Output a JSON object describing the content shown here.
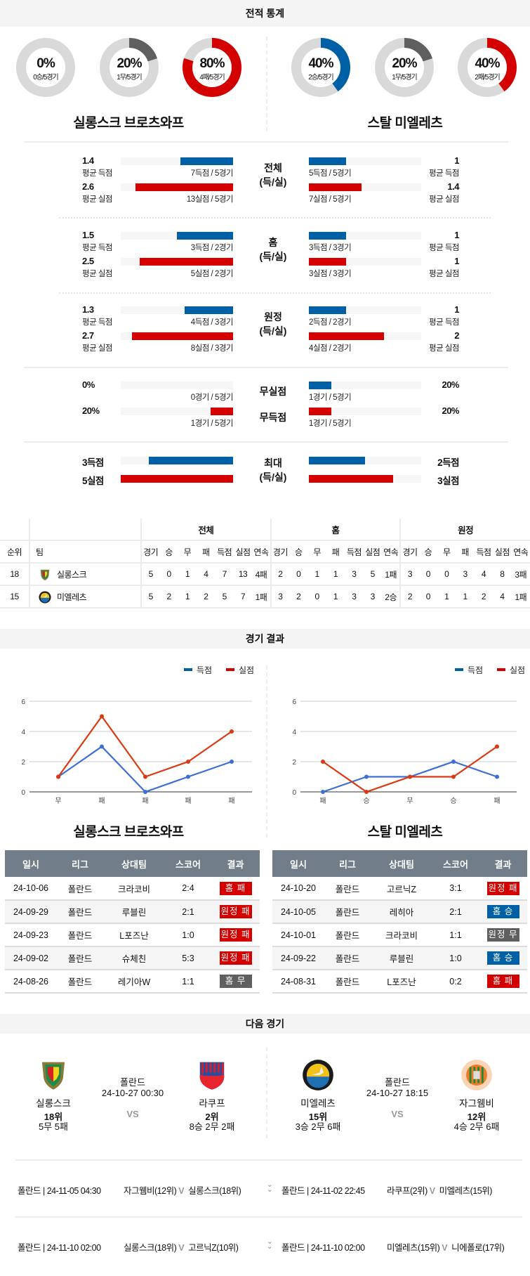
{
  "sections": {
    "record_stats": "전적 통계",
    "match_results": "경기 결과",
    "next_match": "다음 경기"
  },
  "colors": {
    "blue": "#0060a6",
    "red": "#d40000",
    "gray": "#5f5f5f",
    "ring": "#d9d9d9",
    "line_blue": "#3c6fd6",
    "line_red": "#dc3912",
    "badge_blue": "#0060a6",
    "badge_red": "#d40000",
    "badge_gray": "#5f5f5f"
  },
  "teams": {
    "home_full": "실롱스크 브로츠와프",
    "away_full": "스탈 미엘레츠"
  },
  "donuts": [
    {
      "pct": "0%",
      "sub": "0승/5경기",
      "value": 0,
      "color": "blue"
    },
    {
      "pct": "20%",
      "sub": "1무/5경기",
      "value": 20,
      "color": "gray"
    },
    {
      "pct": "80%",
      "sub": "4패/5경기",
      "value": 80,
      "color": "red"
    },
    {
      "pct": "40%",
      "sub": "2승/5경기",
      "value": 40,
      "color": "blue"
    },
    {
      "pct": "20%",
      "sub": "1무/5경기",
      "value": 20,
      "color": "gray"
    },
    {
      "pct": "40%",
      "sub": "2패/5경기",
      "value": 40,
      "color": "red"
    }
  ],
  "stats": [
    {
      "center": "전체",
      "center2": "(득/실)",
      "rows": [
        {
          "color": "blue",
          "left": {
            "value": "1.4",
            "caption": "평균 득점",
            "sub": "7득점 / 5경기",
            "fill": 0.47
          },
          "right": {
            "value": "1",
            "caption": "평균 득점",
            "sub": "5득점 / 5경기",
            "fill": 0.33
          }
        },
        {
          "color": "red",
          "left": {
            "value": "2.6",
            "caption": "평균 실점",
            "sub": "13실점 / 5경기",
            "fill": 0.87
          },
          "right": {
            "value": "1.4",
            "caption": "평균 실점",
            "sub": "7실점 / 5경기",
            "fill": 0.47
          }
        }
      ]
    },
    {
      "center": "홈",
      "center2": "(득/실)",
      "rows": [
        {
          "color": "blue",
          "left": {
            "value": "1.5",
            "caption": "평균 득점",
            "sub": "3득점 / 2경기",
            "fill": 0.5
          },
          "right": {
            "value": "1",
            "caption": "평균 득점",
            "sub": "3득점 / 3경기",
            "fill": 0.33
          }
        },
        {
          "color": "red",
          "left": {
            "value": "2.5",
            "caption": "평균 실점",
            "sub": "5실점 / 2경기",
            "fill": 0.83
          },
          "right": {
            "value": "1",
            "caption": "평균 실점",
            "sub": "3실점 / 3경기",
            "fill": 0.33
          }
        }
      ]
    },
    {
      "center": "원정",
      "center2": "(득/실)",
      "rows": [
        {
          "color": "blue",
          "left": {
            "value": "1.3",
            "caption": "평균 득점",
            "sub": "4득점 / 3경기",
            "fill": 0.43
          },
          "right": {
            "value": "1",
            "caption": "평균 득점",
            "sub": "2득점 / 2경기",
            "fill": 0.33
          }
        },
        {
          "color": "red",
          "left": {
            "value": "2.7",
            "caption": "평균 실점",
            "sub": "8실점 / 3경기",
            "fill": 0.9
          },
          "right": {
            "value": "2",
            "caption": "평균 실점",
            "sub": "4실점 / 2경기",
            "fill": 0.67
          }
        }
      ]
    },
    {
      "rows": [
        {
          "color": "blue",
          "center": "무실점",
          "left": {
            "value": "0%",
            "sub": "0경기 / 5경기",
            "fill": 0
          },
          "right": {
            "value": "20%",
            "sub": "1경기 / 5경기",
            "fill": 0.2
          }
        },
        {
          "color": "red",
          "center": "무득점",
          "left": {
            "value": "20%",
            "sub": "1경기 / 5경기",
            "fill": 0.2
          },
          "right": {
            "value": "20%",
            "sub": "1경기 / 5경기",
            "fill": 0.2
          }
        }
      ]
    },
    {
      "center": "최대",
      "center2": "(득/실)",
      "rows": [
        {
          "color": "blue",
          "left": {
            "value": "3득점",
            "fill": 0.75
          },
          "right": {
            "value": "2득점",
            "fill": 0.5
          }
        },
        {
          "color": "red",
          "left": {
            "value": "5실점",
            "fill": 1.0
          },
          "right": {
            "value": "3실점",
            "fill": 0.75
          }
        }
      ]
    }
  ],
  "standings": {
    "groups": [
      "전체",
      "홈",
      "원정"
    ],
    "rank_header": "순위",
    "team_header": "팀",
    "columns": [
      "경기",
      "승",
      "무",
      "패",
      "득점",
      "실점",
      "연속"
    ],
    "rows": [
      {
        "rank": "18",
        "team": "실롱스크",
        "logo": "slask-logo",
        "cells": [
          "5",
          "0",
          "1",
          "4",
          "7",
          "13",
          "4패",
          "2",
          "0",
          "1",
          "1",
          "3",
          "5",
          "1패",
          "3",
          "0",
          "0",
          "3",
          "4",
          "8",
          "3패"
        ]
      },
      {
        "rank": "15",
        "team": "미엘레츠",
        "logo": "mielec-logo",
        "cells": [
          "5",
          "2",
          "1",
          "2",
          "5",
          "7",
          "1패",
          "3",
          "2",
          "0",
          "1",
          "3",
          "3",
          "2승",
          "2",
          "0",
          "1",
          "1",
          "2",
          "4",
          "1패"
        ]
      }
    ]
  },
  "chart_data": [
    {
      "type": "line",
      "team": "실롱스크 브로츠와프",
      "categories": [
        "무",
        "패",
        "패",
        "패",
        "패"
      ],
      "ylim": [
        0,
        6
      ],
      "yticks": [
        0,
        2,
        4,
        6
      ],
      "grid": true,
      "legend": "top-right",
      "series": [
        {
          "name": "득점",
          "color": "#3c6fd6",
          "values": [
            1,
            3,
            0,
            1,
            2
          ]
        },
        {
          "name": "실점",
          "color": "#dc3912",
          "values": [
            1,
            5,
            1,
            2,
            4
          ]
        }
      ]
    },
    {
      "type": "line",
      "team": "스탈 미엘레츠",
      "categories": [
        "패",
        "승",
        "무",
        "승",
        "패"
      ],
      "ylim": [
        0,
        6
      ],
      "yticks": [
        0,
        2,
        4,
        6
      ],
      "grid": true,
      "legend": "top-right",
      "series": [
        {
          "name": "득점",
          "color": "#3c6fd6",
          "values": [
            0,
            1,
            1,
            2,
            1
          ]
        },
        {
          "name": "실점",
          "color": "#dc3912",
          "values": [
            2,
            0,
            1,
            1,
            3
          ]
        }
      ]
    }
  ],
  "results": {
    "headers": [
      "일시",
      "리그",
      "상대팀",
      "스코어",
      "결과"
    ],
    "home": [
      {
        "date": "24-10-06",
        "league": "폴란드",
        "opp": "크라코비",
        "score": "2:4",
        "result": "홈 패",
        "color": "badge_red"
      },
      {
        "date": "24-09-29",
        "league": "폴란드",
        "opp": "루블린",
        "score": "2:1",
        "result": "원정 패",
        "color": "badge_red"
      },
      {
        "date": "24-09-23",
        "league": "폴란드",
        "opp": "L포즈난",
        "score": "1:0",
        "result": "원정 패",
        "color": "badge_red"
      },
      {
        "date": "24-09-02",
        "league": "폴란드",
        "opp": "슈체친",
        "score": "5:3",
        "result": "원정 패",
        "color": "badge_red"
      },
      {
        "date": "24-08-26",
        "league": "폴란드",
        "opp": "레기아W",
        "score": "1:1",
        "result": "홈 무",
        "color": "badge_gray"
      }
    ],
    "away": [
      {
        "date": "24-10-20",
        "league": "폴란드",
        "opp": "고르닉Z",
        "score": "3:1",
        "result": "원정 패",
        "color": "badge_red"
      },
      {
        "date": "24-10-05",
        "league": "폴란드",
        "opp": "레히아",
        "score": "2:1",
        "result": "홈 승",
        "color": "badge_blue"
      },
      {
        "date": "24-10-01",
        "league": "폴란드",
        "opp": "크라코비",
        "score": "1:1",
        "result": "원정 무",
        "color": "badge_gray"
      },
      {
        "date": "24-09-22",
        "league": "폴란드",
        "opp": "루블린",
        "score": "1:0",
        "result": "홈 승",
        "color": "badge_blue"
      },
      {
        "date": "24-08-31",
        "league": "폴란드",
        "opp": "L포즈난",
        "score": "0:2",
        "result": "홈 패",
        "color": "badge_red"
      }
    ]
  },
  "next": [
    {
      "league": "폴란드",
      "datetime": "24-10-27 00:30",
      "vs": "VS",
      "home": {
        "name": "실롱스크",
        "rank": "18위",
        "record": "5무 5패",
        "logo": "slask-logo"
      },
      "away": {
        "name": "라쿠프",
        "rank": "2위",
        "record": "8승 2무 2패",
        "logo": "rakow-logo"
      }
    },
    {
      "league": "폴란드",
      "datetime": "24-10-27 18:15",
      "vs": "VS",
      "home": {
        "name": "미엘레츠",
        "rank": "15위",
        "record": "3승 2무 6패",
        "logo": "mielec-logo"
      },
      "away": {
        "name": "자그웸비",
        "rank": "12위",
        "record": "4승 2무 6패",
        "logo": "zaglebie-logo"
      }
    }
  ],
  "upcoming": [
    [
      {
        "info": "폴란드 | 24-11-05 04:30",
        "home": "자그웸비(12위)",
        "v": "V",
        "away": "실롱스크(18위)"
      },
      {
        "info": "폴란드 | 24-11-02 22:45",
        "home": "라쿠프(2위)",
        "v": "V",
        "away": "미엘레츠(15위)"
      }
    ],
    [
      {
        "info": "폴란드 | 24-11-10 02:00",
        "home": "실롱스크(18위)",
        "v": "V",
        "away": "고르닉Z(10위)"
      },
      {
        "info": "폴란드 | 24-11-10 02:00",
        "home": "미엘레츠(15위)",
        "v": "V",
        "away": "니에폴로(17위)"
      }
    ]
  ]
}
